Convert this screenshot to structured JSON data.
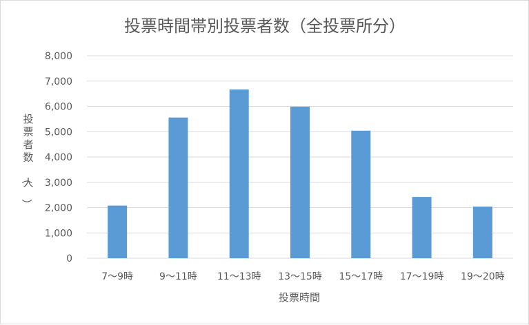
{
  "chart_data": {
    "type": "bar",
    "title": "投票時間帯別投票者数（全投票所分）",
    "xlabel": "投票時間",
    "ylabel": "投票者数（人）",
    "categories": [
      "7〜9時",
      "9〜11時",
      "11〜13時",
      "13〜15時",
      "15〜17時",
      "17〜19時",
      "19〜20時"
    ],
    "values": [
      2080,
      5560,
      6670,
      5990,
      5040,
      2420,
      2040
    ],
    "ylim": [
      0,
      8000
    ],
    "yticks": [
      "0",
      "1,000",
      "2,000",
      "3,000",
      "4,000",
      "5,000",
      "6,000",
      "7,000",
      "8,000"
    ],
    "grid": true,
    "legend": "none",
    "colors": {
      "bar": "#5b9bd5",
      "grid": "#d9d9d9",
      "text": "#595959"
    }
  }
}
